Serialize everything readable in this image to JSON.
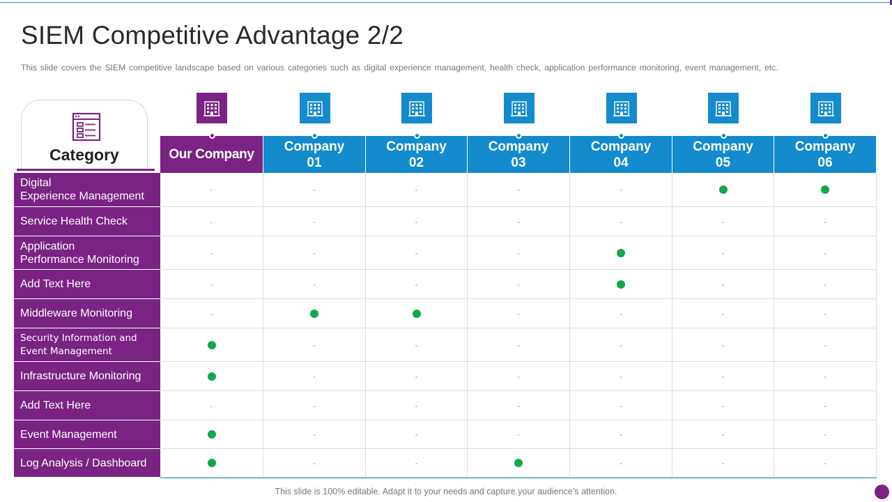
{
  "title": "SIEM Competitive Advantage 2/2",
  "subtitle": "This slide covers the SIEM competitive landscape based on various categories such as digital experience management, health check, application performance  monitoring, event management, etc.",
  "category_header": "Category",
  "icons": {
    "category": "form-icon",
    "company": "building-icon"
  },
  "colors": {
    "our_company": "#7a2384",
    "company": "#138bcc",
    "check_dot": "#0fa84a",
    "row_label": "#7a2384"
  },
  "companies": [
    {
      "label": "Our Company"
    },
    {
      "label": "Company\n01"
    },
    {
      "label": "Company\n02"
    },
    {
      "label": "Company\n03"
    },
    {
      "label": "Company\n04"
    },
    {
      "label": "Company\n05"
    },
    {
      "label": "Company\n06"
    }
  ],
  "empty_mark": "-",
  "rows": [
    {
      "label": "Digital\nExperience Management",
      "marks": [
        0,
        0,
        0,
        0,
        0,
        1,
        1
      ]
    },
    {
      "label": "Service Health Check",
      "marks": [
        0,
        0,
        0,
        0,
        0,
        0,
        0
      ]
    },
    {
      "label": "Application\nPerformance Monitoring",
      "marks": [
        0,
        0,
        0,
        0,
        1,
        0,
        0
      ]
    },
    {
      "label": "Add Text Here",
      "marks": [
        0,
        0,
        0,
        0,
        1,
        0,
        0
      ]
    },
    {
      "label": "Middleware Monitoring",
      "marks": [
        0,
        1,
        1,
        0,
        0,
        0,
        0
      ]
    },
    {
      "label": "Security Information and\nEvent Management",
      "marks": [
        1,
        0,
        0,
        0,
        0,
        0,
        0
      ]
    },
    {
      "label": "Infrastructure  Monitoring",
      "marks": [
        1,
        0,
        0,
        0,
        0,
        0,
        0
      ]
    },
    {
      "label": "Add Text Here",
      "marks": [
        0,
        0,
        0,
        0,
        0,
        0,
        0
      ]
    },
    {
      "label": "Event Management",
      "marks": [
        1,
        0,
        0,
        0,
        0,
        0,
        0
      ]
    },
    {
      "label": "Log Analysis / Dashboard",
      "marks": [
        1,
        0,
        0,
        1,
        0,
        0,
        0
      ]
    }
  ],
  "footer": "This slide is 100% editable. Adapt it to your needs and capture your audience’s attention."
}
